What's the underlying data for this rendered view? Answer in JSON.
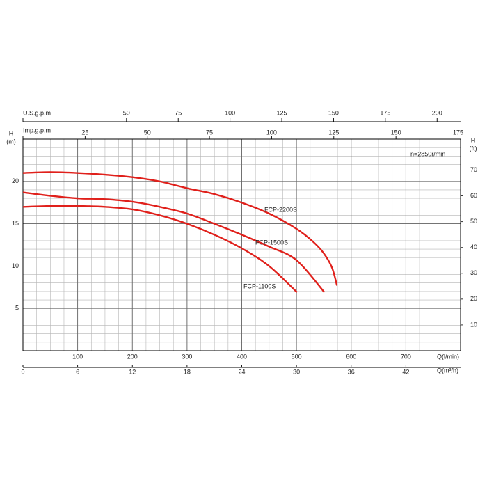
{
  "chart_data": {
    "type": "line",
    "xlabel": "Q(l/min)",
    "ylabel": [
      "H",
      "(m)"
    ],
    "y2label": [
      "H",
      "(ft)"
    ],
    "annotation": "n=2850r/min",
    "xlim": [
      0,
      800
    ],
    "xticks": [
      100,
      200,
      300,
      400,
      500,
      600,
      700
    ],
    "ylim": [
      0,
      25
    ],
    "yticks": [
      5,
      10,
      15,
      20
    ],
    "y2lim": [
      0,
      82.02
    ],
    "y2ticks": [
      10,
      20,
      30,
      40,
      50,
      60,
      70
    ],
    "grid": true,
    "secondary_x_axes": [
      {
        "label": "Q(m³/h)",
        "position": "bottom",
        "lim": [
          0,
          48
        ],
        "ticks": [
          0,
          6,
          12,
          18,
          24,
          30,
          36,
          42
        ]
      },
      {
        "label": "Imp.g.p.m",
        "position": "top",
        "lim": [
          0,
          175.98
        ],
        "ticks": [
          25,
          50,
          75,
          100,
          125,
          150,
          175
        ]
      },
      {
        "label": "U.S.g.p.m",
        "position": "top-outer",
        "lim": [
          0,
          211.34
        ],
        "ticks": [
          50,
          75,
          100,
          125,
          150,
          175,
          200
        ]
      }
    ],
    "series": [
      {
        "name": "FCP-2200S",
        "color": "#e0201b",
        "x": [
          0,
          50,
          100,
          150,
          200,
          250,
          300,
          350,
          400,
          450,
          500,
          530,
          550,
          565,
          574
        ],
        "values": [
          21.0,
          21.1,
          21.0,
          20.8,
          20.5,
          20.0,
          19.2,
          18.5,
          17.5,
          16.2,
          14.4,
          12.9,
          11.5,
          9.8,
          7.7
        ]
      },
      {
        "name": "FCP-1500S",
        "color": "#e0201b",
        "x": [
          0,
          50,
          100,
          150,
          200,
          250,
          300,
          350,
          400,
          450,
          500,
          551
        ],
        "values": [
          18.7,
          18.3,
          18.0,
          17.9,
          17.6,
          17.0,
          16.2,
          15.0,
          13.7,
          12.3,
          10.7,
          6.9
        ]
      },
      {
        "name": "FCP-1100S",
        "color": "#e0201b",
        "x": [
          0,
          50,
          100,
          150,
          200,
          250,
          300,
          350,
          400,
          450,
          501
        ],
        "values": [
          17.0,
          17.1,
          17.1,
          17.0,
          16.7,
          16.0,
          15.0,
          13.7,
          12.1,
          10.0,
          6.9
        ]
      }
    ]
  }
}
